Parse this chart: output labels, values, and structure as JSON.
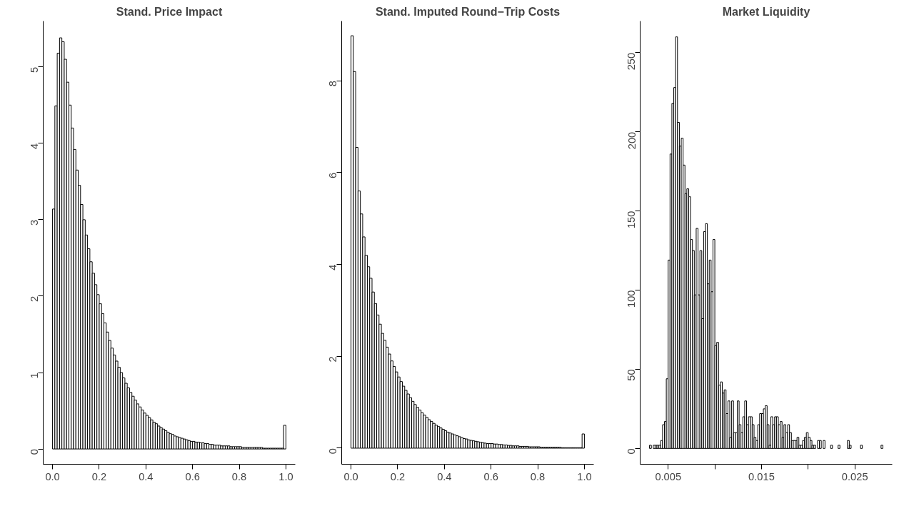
{
  "chart_data": [
    {
      "type": "histogram",
      "title": "Stand. Price Impact",
      "color": "#ffffff",
      "bins": [
        0,
        0.01,
        0.02,
        0.03,
        0.04,
        0.05,
        0.06,
        0.07,
        0.08,
        0.09,
        0.1,
        0.11,
        0.12,
        0.13,
        0.14,
        0.15,
        0.16,
        0.17,
        0.18,
        0.19,
        0.2,
        0.21,
        0.22,
        0.23,
        0.24,
        0.25,
        0.26,
        0.27,
        0.28,
        0.29,
        0.3,
        0.31,
        0.32,
        0.33,
        0.34,
        0.35,
        0.36,
        0.37,
        0.38,
        0.39,
        0.4,
        0.41,
        0.42,
        0.43,
        0.44,
        0.45,
        0.46,
        0.47,
        0.48,
        0.49,
        0.5,
        0.51,
        0.52,
        0.53,
        0.54,
        0.55,
        0.56,
        0.57,
        0.58,
        0.59,
        0.6,
        0.61,
        0.62,
        0.63,
        0.64,
        0.65,
        0.66,
        0.67,
        0.68,
        0.69,
        0.7,
        0.71,
        0.72,
        0.73,
        0.74,
        0.75,
        0.76,
        0.77,
        0.78,
        0.79,
        0.8,
        0.81,
        0.82,
        0.83,
        0.84,
        0.85,
        0.86,
        0.87,
        0.88,
        0.89,
        0.9,
        0.91,
        0.92,
        0.93,
        0.94,
        0.95,
        0.96,
        0.97,
        0.98,
        0.99,
        1.0
      ],
      "values": [
        3.14,
        4.49,
        5.18,
        5.38,
        5.33,
        5.1,
        4.8,
        4.5,
        4.2,
        3.92,
        3.65,
        3.45,
        3.2,
        3.0,
        2.8,
        2.62,
        2.45,
        2.3,
        2.15,
        2.02,
        1.9,
        1.77,
        1.65,
        1.53,
        1.42,
        1.32,
        1.23,
        1.15,
        1.07,
        1.0,
        0.93,
        0.86,
        0.8,
        0.74,
        0.69,
        0.64,
        0.59,
        0.55,
        0.51,
        0.47,
        0.44,
        0.41,
        0.38,
        0.35,
        0.33,
        0.3,
        0.28,
        0.26,
        0.24,
        0.22,
        0.2,
        0.19,
        0.17,
        0.16,
        0.15,
        0.14,
        0.13,
        0.12,
        0.11,
        0.1,
        0.1,
        0.09,
        0.09,
        0.08,
        0.08,
        0.07,
        0.07,
        0.06,
        0.06,
        0.05,
        0.05,
        0.05,
        0.04,
        0.04,
        0.04,
        0.04,
        0.03,
        0.03,
        0.03,
        0.03,
        0.03,
        0.02,
        0.02,
        0.02,
        0.02,
        0.02,
        0.02,
        0.02,
        0.02,
        0.02,
        0.01,
        0.01,
        0.01,
        0.01,
        0.01,
        0.01,
        0.01,
        0.01,
        0.01,
        0.31
      ],
      "xlim": [
        -0.04,
        1.04
      ],
      "ylim": [
        -0.2,
        5.6
      ],
      "xticks": [
        {
          "value": 0,
          "label": "0.0"
        },
        {
          "value": 0.2,
          "label": "0.2"
        },
        {
          "value": 0.4,
          "label": "0.4"
        },
        {
          "value": 0.6,
          "label": "0.6"
        },
        {
          "value": 0.8,
          "label": "0.8"
        },
        {
          "value": 1.0,
          "label": "1.0"
        }
      ],
      "yticks": [
        0,
        1,
        2,
        3,
        4,
        5
      ]
    },
    {
      "type": "histogram",
      "title": "Stand. Imputed Round−Trip Costs",
      "color": "#ffffff",
      "bins": [
        0,
        0.01,
        0.02,
        0.03,
        0.04,
        0.05,
        0.06,
        0.07,
        0.08,
        0.09,
        0.1,
        0.11,
        0.12,
        0.13,
        0.14,
        0.15,
        0.16,
        0.17,
        0.18,
        0.19,
        0.2,
        0.21,
        0.22,
        0.23,
        0.24,
        0.25,
        0.26,
        0.27,
        0.28,
        0.29,
        0.3,
        0.31,
        0.32,
        0.33,
        0.34,
        0.35,
        0.36,
        0.37,
        0.38,
        0.39,
        0.4,
        0.41,
        0.42,
        0.43,
        0.44,
        0.45,
        0.46,
        0.47,
        0.48,
        0.49,
        0.5,
        0.51,
        0.52,
        0.53,
        0.54,
        0.55,
        0.56,
        0.57,
        0.58,
        0.59,
        0.6,
        0.61,
        0.62,
        0.63,
        0.64,
        0.65,
        0.66,
        0.67,
        0.68,
        0.69,
        0.7,
        0.71,
        0.72,
        0.73,
        0.74,
        0.75,
        0.76,
        0.77,
        0.78,
        0.79,
        0.8,
        0.81,
        0.82,
        0.83,
        0.84,
        0.85,
        0.86,
        0.87,
        0.88,
        0.89,
        0.9,
        0.91,
        0.92,
        0.93,
        0.94,
        0.95,
        0.96,
        0.97,
        0.98,
        0.99,
        1.0
      ],
      "values": [
        8.98,
        8.2,
        6.55,
        5.6,
        5.1,
        4.6,
        4.2,
        3.95,
        3.7,
        3.4,
        3.15,
        2.9,
        2.7,
        2.5,
        2.35,
        2.2,
        2.05,
        1.9,
        1.78,
        1.66,
        1.55,
        1.45,
        1.35,
        1.26,
        1.18,
        1.1,
        1.02,
        0.95,
        0.89,
        0.83,
        0.77,
        0.72,
        0.67,
        0.62,
        0.58,
        0.54,
        0.5,
        0.47,
        0.44,
        0.41,
        0.38,
        0.35,
        0.33,
        0.31,
        0.29,
        0.27,
        0.25,
        0.23,
        0.21,
        0.2,
        0.18,
        0.17,
        0.16,
        0.15,
        0.14,
        0.13,
        0.12,
        0.11,
        0.1,
        0.1,
        0.1,
        0.09,
        0.09,
        0.08,
        0.08,
        0.07,
        0.07,
        0.06,
        0.06,
        0.05,
        0.05,
        0.05,
        0.04,
        0.04,
        0.04,
        0.04,
        0.03,
        0.03,
        0.03,
        0.03,
        0.03,
        0.02,
        0.02,
        0.02,
        0.02,
        0.02,
        0.02,
        0.02,
        0.02,
        0.02,
        0.01,
        0.01,
        0.01,
        0.01,
        0.01,
        0.01,
        0.01,
        0.01,
        0.01,
        0.31
      ],
      "xlim": [
        -0.04,
        1.04
      ],
      "ylim": [
        -0.35,
        9.3
      ],
      "xticks": [
        {
          "value": 0,
          "label": "0.0"
        },
        {
          "value": 0.2,
          "label": "0.2"
        },
        {
          "value": 0.4,
          "label": "0.4"
        },
        {
          "value": 0.6,
          "label": "0.6"
        },
        {
          "value": 0.8,
          "label": "0.8"
        },
        {
          "value": 1.0,
          "label": "1.0"
        }
      ],
      "yticks": [
        0,
        2,
        4,
        6,
        8
      ]
    },
    {
      "type": "histogram",
      "title": "Market Liquidity",
      "color": "#ffffff",
      "bins": [
        0.003,
        0.0032,
        0.0034,
        0.0036,
        0.0038,
        0.004,
        0.0042,
        0.0044,
        0.0046,
        0.0048,
        0.005,
        0.0052,
        0.0054,
        0.0056,
        0.0058,
        0.006,
        0.0062,
        0.0064,
        0.0066,
        0.0068,
        0.007,
        0.0072,
        0.0074,
        0.0076,
        0.0078,
        0.008,
        0.0082,
        0.0084,
        0.0086,
        0.0088,
        0.009,
        0.0092,
        0.0094,
        0.0096,
        0.0098,
        0.01,
        0.0102,
        0.0104,
        0.0106,
        0.0108,
        0.011,
        0.0112,
        0.0114,
        0.0116,
        0.0118,
        0.012,
        0.0122,
        0.0124,
        0.0126,
        0.0128,
        0.013,
        0.0132,
        0.0134,
        0.0136,
        0.0138,
        0.014,
        0.0142,
        0.0144,
        0.0146,
        0.0148,
        0.015,
        0.0152,
        0.0154,
        0.0156,
        0.0158,
        0.016,
        0.0162,
        0.0164,
        0.0166,
        0.0168,
        0.017,
        0.0172,
        0.0174,
        0.0176,
        0.0178,
        0.018,
        0.0182,
        0.0184,
        0.0186,
        0.0188,
        0.019,
        0.0192,
        0.0194,
        0.0196,
        0.0198,
        0.02,
        0.0202,
        0.0204,
        0.0206,
        0.0208,
        0.021,
        0.0212,
        0.0214,
        0.0216,
        0.0218,
        0.022,
        0.0222,
        0.0224,
        0.0226,
        0.0228,
        0.023,
        0.0232,
        0.0234,
        0.0236,
        0.0238,
        0.024,
        0.0242,
        0.0244,
        0.0246,
        0.0248,
        0.025,
        0.0252,
        0.0254,
        0.0256,
        0.0258,
        0.026,
        0.0262,
        0.0264,
        0.0266,
        0.0268,
        0.027,
        0.0272,
        0.0274,
        0.0276,
        0.0278,
        0.028
      ],
      "values": [
        2,
        0,
        2,
        2,
        2,
        2,
        5,
        15,
        17,
        44,
        119,
        186,
        218,
        228,
        260,
        206,
        191,
        196,
        179,
        161,
        164,
        159,
        132,
        125,
        97,
        139,
        97,
        125,
        82,
        137,
        142,
        104,
        119,
        99,
        132,
        65,
        67,
        40,
        42,
        35,
        37,
        22,
        30,
        7,
        30,
        10,
        10,
        30,
        15,
        10,
        20,
        30,
        15,
        20,
        20,
        15,
        7,
        5,
        15,
        22,
        22,
        25,
        27,
        15,
        2,
        20,
        15,
        20,
        20,
        15,
        17,
        7,
        15,
        10,
        15,
        10,
        5,
        5,
        5,
        7,
        2,
        2,
        5,
        7,
        10,
        7,
        5,
        2,
        2,
        0,
        5,
        5,
        0,
        5,
        0,
        0,
        0,
        2,
        0,
        0,
        0,
        2,
        0,
        0,
        0,
        0,
        5,
        2,
        0,
        0,
        0,
        0,
        0,
        2,
        0,
        0,
        0,
        0,
        0,
        0,
        0,
        0,
        0,
        0,
        2
      ],
      "xlim": [
        0.002,
        0.029
      ],
      "ylim": [
        -10,
        270
      ],
      "xticks": [
        {
          "value": 0.005,
          "label": "0.005"
        },
        {
          "value": 0.01,
          "label": null
        },
        {
          "value": 0.015,
          "label": "0.015"
        },
        {
          "value": 0.02,
          "label": null
        },
        {
          "value": 0.025,
          "label": "0.025"
        }
      ],
      "yticks": [
        0,
        50,
        100,
        150,
        200,
        250
      ]
    }
  ]
}
